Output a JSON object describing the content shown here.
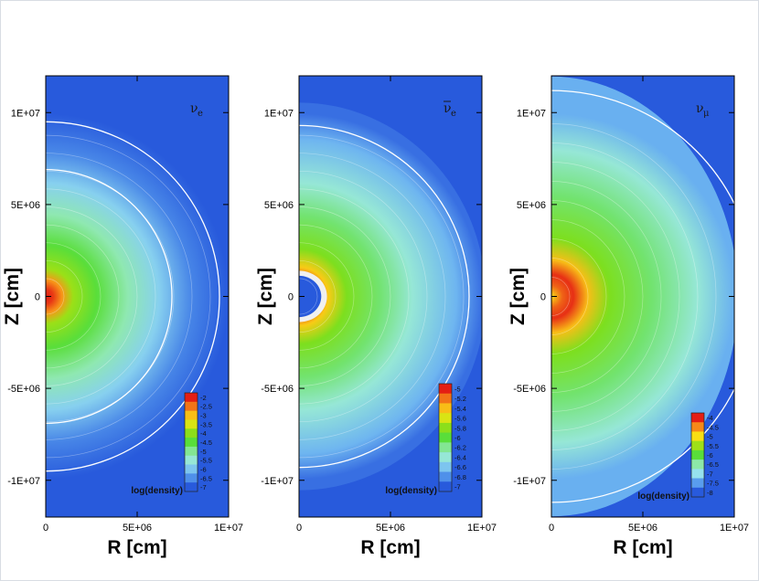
{
  "chart_data": [
    {
      "type": "heatmap",
      "title": "ν_e",
      "title_base": "ν",
      "title_sub": "e",
      "antiparticle": false,
      "xlabel": "R [cm]",
      "ylabel": "Z [cm]",
      "xlim": [
        0,
        10000000
      ],
      "ylim": [
        -12000000,
        12000000
      ],
      "x_ticks": [
        "0",
        "5E+06",
        "1E+07"
      ],
      "y_ticks": [
        "-1E+07",
        "-5E+06",
        "0",
        "5E+06",
        "1E+07"
      ],
      "colorbar_title": "log(density)",
      "colorbar_levels": [
        "-2",
        "-2.5",
        "-3",
        "-3.5",
        "-4",
        "-4.5",
        "-5",
        "-5.5",
        "-6",
        "-6.5",
        "-7"
      ],
      "peak_value": -2,
      "floor_value": -7.5,
      "contour_radii_cm": [
        9500000,
        6900000
      ]
    },
    {
      "type": "heatmap",
      "title": "ν̄_e",
      "title_base": "ν",
      "title_sub": "e",
      "antiparticle": true,
      "xlabel": "R [cm]",
      "ylabel": "Z [cm]",
      "xlim": [
        0,
        10000000
      ],
      "ylim": [
        -12000000,
        12000000
      ],
      "x_ticks": [
        "0",
        "5E+06",
        "1E+07"
      ],
      "y_ticks": [
        "-1E+07",
        "-5E+06",
        "0",
        "5E+06",
        "1E+07"
      ],
      "colorbar_title": "log(density)",
      "colorbar_levels": [
        "-5",
        "-5.2",
        "-5.4",
        "-5.6",
        "-5.8",
        "-6",
        "-6.2",
        "-6.4",
        "-6.6",
        "-6.8",
        "-7"
      ],
      "peak_value": -5,
      "floor_value": -7.5,
      "contour_radii_cm": [
        9300000
      ],
      "core_cutout_radius_cm": 900000
    },
    {
      "type": "heatmap",
      "title": "ν_μ",
      "title_base": "ν",
      "title_sub": "μ",
      "antiparticle": false,
      "xlabel": "R [cm]",
      "ylabel": "Z [cm]",
      "xlim": [
        0,
        10000000
      ],
      "ylim": [
        -12000000,
        12000000
      ],
      "x_ticks": [
        "0",
        "5E+06",
        "1E+07"
      ],
      "y_ticks": [
        "-1E+07",
        "-5E+06",
        "0",
        "5E+06",
        "1E+07"
      ],
      "colorbar_title": "log(density)",
      "colorbar_levels": [
        "-4",
        "-4.5",
        "-5",
        "-5.5",
        "-6",
        "-6.5",
        "-7",
        "-7.5",
        "-8"
      ],
      "peak_value": -4,
      "floor_value": -8,
      "contour_radii_cm": [
        11200000
      ]
    }
  ]
}
